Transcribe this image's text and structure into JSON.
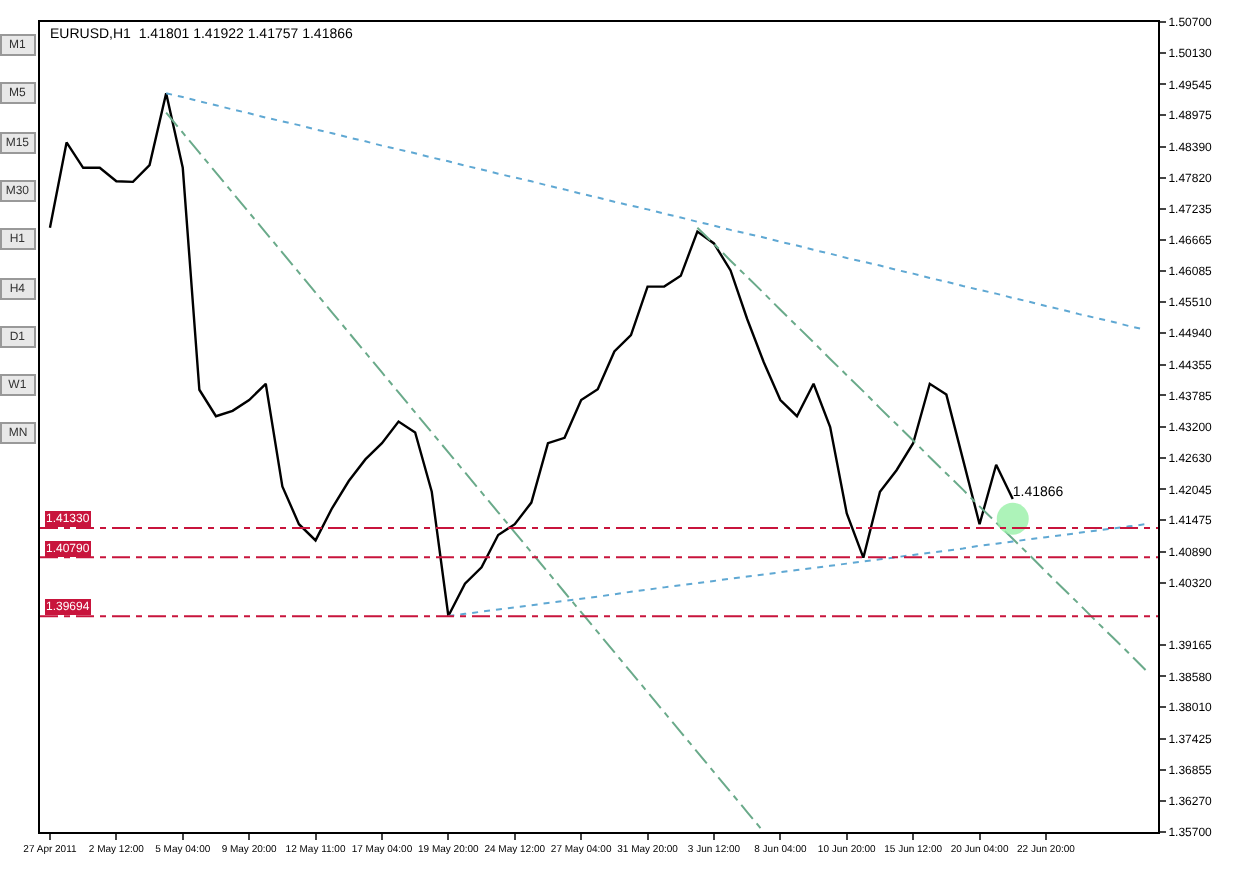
{
  "chart_data": {
    "type": "line",
    "title": "EURUSD,H1  1.41801 1.41922 1.41757 1.41866",
    "annotations": [
      "M1",
      "M5",
      "M15",
      "M30",
      "H1",
      "H4",
      "D1",
      "W1",
      "MN"
    ],
    "categories": [
      "27 Apr 2011",
      null,
      null,
      null,
      "2 May 12:00",
      null,
      null,
      null,
      "5 May 04:00",
      null,
      null,
      null,
      "9 May 20:00",
      null,
      null,
      null,
      "12 May 11:00",
      null,
      null,
      null,
      "17 May 04:00",
      null,
      null,
      null,
      "19 May 20:00",
      null,
      null,
      null,
      "24 May 12:00",
      null,
      null,
      null,
      "27 May 04:00",
      null,
      null,
      null,
      "31 May 20:00",
      null,
      null,
      null,
      "3 Jun 12:00",
      null,
      null,
      null,
      "8 Jun 04:00",
      null,
      null,
      null,
      "10 Jun 20:00",
      null,
      null,
      null,
      "15 Jun 12:00",
      null,
      null,
      null,
      "20 Jun 04:00",
      null,
      null,
      null,
      "22 Jun 20:00",
      null,
      null,
      null,
      null,
      null,
      null
    ],
    "ylim": [
      1.357,
      1.507
    ],
    "yticks": [
      {
        "value": 1.507,
        "label": "1.50700"
      },
      {
        "value": 1.5013,
        "label": "1.50130"
      },
      {
        "value": 1.49545,
        "label": "1.49545"
      },
      {
        "value": 1.48975,
        "label": "1.48975"
      },
      {
        "value": 1.4839,
        "label": "1.48390"
      },
      {
        "value": 1.4782,
        "label": "1.47820"
      },
      {
        "value": 1.47235,
        "label": "1.47235"
      },
      {
        "value": 1.46665,
        "label": "1.46665"
      },
      {
        "value": 1.46085,
        "label": "1.46085"
      },
      {
        "value": 1.4551,
        "label": "1.45510"
      },
      {
        "value": 1.4494,
        "label": "1.44940"
      },
      {
        "value": 1.44355,
        "label": "1.44355"
      },
      {
        "value": 1.43785,
        "label": "1.43785"
      },
      {
        "value": 1.432,
        "label": "1.43200"
      },
      {
        "value": 1.4263,
        "label": "1.42630"
      },
      {
        "value": 1.42045,
        "label": "1.42045"
      },
      {
        "value": 1.41475,
        "label": "1.41475"
      },
      {
        "value": 1.4089,
        "label": "1.40890"
      },
      {
        "value": 1.4032,
        "label": "1.40320"
      },
      {
        "value": 1.39165,
        "label": "1.39165"
      },
      {
        "value": 1.3858,
        "label": "1.38580"
      },
      {
        "value": 1.3801,
        "label": "1.38010"
      },
      {
        "value": 1.37425,
        "label": "1.37425"
      },
      {
        "value": 1.36855,
        "label": "1.36855"
      },
      {
        "value": 1.3627,
        "label": "1.36270"
      },
      {
        "value": 1.357,
        "label": "1.35700"
      }
    ],
    "marker": "none",
    "ref_lines": [
      {
        "axis": "y",
        "value": 1.4133,
        "label": "1.41330",
        "color": "#c8143c",
        "line_style": "dashed"
      },
      {
        "axis": "y",
        "value": 1.4079,
        "label": "1.40790",
        "color": "#c8143c",
        "line_style": "dashed"
      },
      {
        "axis": "y",
        "value": 1.39694,
        "label": "1.39694",
        "color": "#c8143c",
        "line_style": "dashed"
      }
    ],
    "series": [
      {
        "color": "#000000",
        "line_style": "solid",
        "values": [
          1.4689,
          1.4847,
          1.48,
          1.48,
          1.4775,
          1.4774,
          1.4805,
          1.4938,
          1.48,
          1.4389,
          1.434,
          1.435,
          1.437,
          1.44,
          1.421,
          1.414,
          1.411,
          1.417,
          1.422,
          1.426,
          1.429,
          1.433,
          1.431,
          1.42,
          1.397,
          1.403,
          1.406,
          1.412,
          1.414,
          1.418,
          1.429,
          1.43,
          1.437,
          1.439,
          1.446,
          1.449,
          1.458,
          1.458,
          1.46,
          1.4682,
          1.466,
          1.461,
          1.452,
          1.444,
          1.437,
          1.434,
          1.44,
          1.432,
          1.416,
          1.4078,
          1.42,
          1.424,
          1.429,
          1.44,
          1.438,
          1.426,
          1.414,
          1.425,
          1.41866,
          null,
          null,
          null,
          null,
          null,
          null,
          null,
          null
        ],
        "value_labels": [
          null,
          null,
          null,
          null,
          null,
          null,
          null,
          null,
          null,
          null,
          null,
          null,
          null,
          null,
          null,
          null,
          null,
          null,
          null,
          null,
          null,
          null,
          null,
          null,
          null,
          null,
          null,
          null,
          null,
          null,
          null,
          null,
          null,
          null,
          null,
          null,
          null,
          null,
          null,
          null,
          null,
          null,
          null,
          null,
          null,
          null,
          null,
          null,
          null,
          null,
          null,
          null,
          null,
          null,
          null,
          null,
          null,
          null,
          "1.41866",
          null,
          null,
          null,
          null,
          null,
          null,
          null,
          null
        ]
      },
      {
        "type": "line",
        "color": "#5fa8d3",
        "line_style": "dotted",
        "values": [
          null,
          null,
          null,
          null,
          null,
          null,
          null,
          1.4938,
          1.4931,
          1.4923,
          1.4916,
          1.4908,
          1.4901,
          1.4893,
          1.4886,
          1.4879,
          1.4871,
          1.4864,
          1.4856,
          1.4849,
          1.4841,
          1.4834,
          1.4827,
          1.4819,
          1.4812,
          1.4804,
          1.4797,
          1.4789,
          1.4782,
          1.4775,
          1.4767,
          1.476,
          1.4752,
          1.4745,
          1.4737,
          1.473,
          1.4723,
          1.4715,
          1.4708,
          1.47,
          1.4693,
          1.4685,
          1.4678,
          1.4671,
          1.4663,
          1.4656,
          1.4648,
          1.4641,
          1.4633,
          1.4626,
          1.4619,
          1.4611,
          1.4604,
          1.4596,
          1.4589,
          1.4581,
          1.4574,
          1.4567,
          1.4559,
          1.4552,
          1.4544,
          1.4537,
          1.4529,
          1.4522,
          1.4515,
          1.4507,
          1.45
        ]
      },
      {
        "type": "line",
        "color": "#5fa8d3",
        "line_style": "dotted",
        "values": [
          null,
          null,
          null,
          null,
          null,
          null,
          null,
          null,
          null,
          null,
          null,
          null,
          null,
          null,
          null,
          null,
          null,
          null,
          null,
          null,
          null,
          null,
          null,
          null,
          1.397,
          1.3974,
          1.3978,
          1.3982,
          1.3986,
          1.399,
          1.3994,
          1.3998,
          1.4002,
          1.4006,
          1.401,
          1.4015,
          1.4019,
          1.4023,
          1.4027,
          1.4031,
          1.4035,
          1.4039,
          1.4043,
          1.4047,
          1.4051,
          1.4055,
          1.4059,
          1.4063,
          1.4067,
          1.4071,
          1.4075,
          1.4079,
          1.4083,
          1.4087,
          1.4091,
          1.4095,
          1.41,
          1.4104,
          1.4108,
          1.4112,
          1.4116,
          1.412,
          1.4124,
          1.4128,
          1.4132,
          1.4136,
          1.414
        ]
      },
      {
        "type": "line",
        "color": "#6aaa8a",
        "line_style": "dashed",
        "values": [
          null,
          null,
          null,
          null,
          null,
          null,
          null,
          1.4902,
          1.4865,
          1.4828,
          1.4791,
          1.4754,
          1.4717,
          1.468,
          1.4643,
          1.4606,
          1.4569,
          1.4532,
          1.4495,
          1.4458,
          1.4421,
          1.4384,
          1.4347,
          1.431,
          1.4273,
          1.4236,
          1.4199,
          1.4162,
          1.4125,
          1.4088,
          1.4051,
          1.4014,
          1.3977,
          1.394,
          1.3903,
          1.3866,
          1.3829,
          1.3792,
          1.3755,
          1.3718,
          1.3681,
          1.3644,
          1.3607,
          1.357,
          null,
          null,
          null,
          null,
          null,
          null,
          null,
          null,
          null,
          null,
          null,
          null,
          null,
          null,
          null,
          null,
          null,
          null,
          null,
          null,
          null,
          null,
          null
        ]
      },
      {
        "type": "line",
        "color": "#6aaa8a",
        "line_style": "dashed",
        "values": [
          null,
          null,
          null,
          null,
          null,
          null,
          null,
          null,
          null,
          null,
          null,
          null,
          null,
          null,
          null,
          null,
          null,
          null,
          null,
          null,
          null,
          null,
          null,
          null,
          null,
          null,
          null,
          null,
          null,
          null,
          null,
          null,
          null,
          null,
          null,
          null,
          null,
          null,
          null,
          1.4689,
          1.4659,
          1.4628,
          1.4598,
          1.4568,
          1.4537,
          1.4507,
          1.4477,
          1.4446,
          1.4416,
          1.4386,
          1.4355,
          1.4325,
          1.4295,
          1.4264,
          1.4234,
          1.4204,
          1.4173,
          1.4143,
          1.4113,
          1.4083,
          1.4052,
          1.4022,
          1.3992,
          1.3961,
          1.3931,
          1.3901,
          1.387
        ]
      },
      {
        "type": "scatter",
        "color": "#98f0a8",
        "marker": "circle",
        "values": [
          null,
          null,
          null,
          null,
          null,
          null,
          null,
          null,
          null,
          null,
          null,
          null,
          null,
          null,
          null,
          null,
          null,
          null,
          null,
          null,
          null,
          null,
          null,
          null,
          null,
          null,
          null,
          null,
          null,
          null,
          null,
          null,
          null,
          null,
          null,
          null,
          null,
          null,
          null,
          null,
          null,
          null,
          null,
          null,
          null,
          null,
          null,
          null,
          null,
          null,
          null,
          null,
          null,
          null,
          null,
          null,
          null,
          null,
          1.415,
          null,
          null,
          null,
          null,
          null,
          null,
          null,
          null
        ]
      }
    ]
  }
}
